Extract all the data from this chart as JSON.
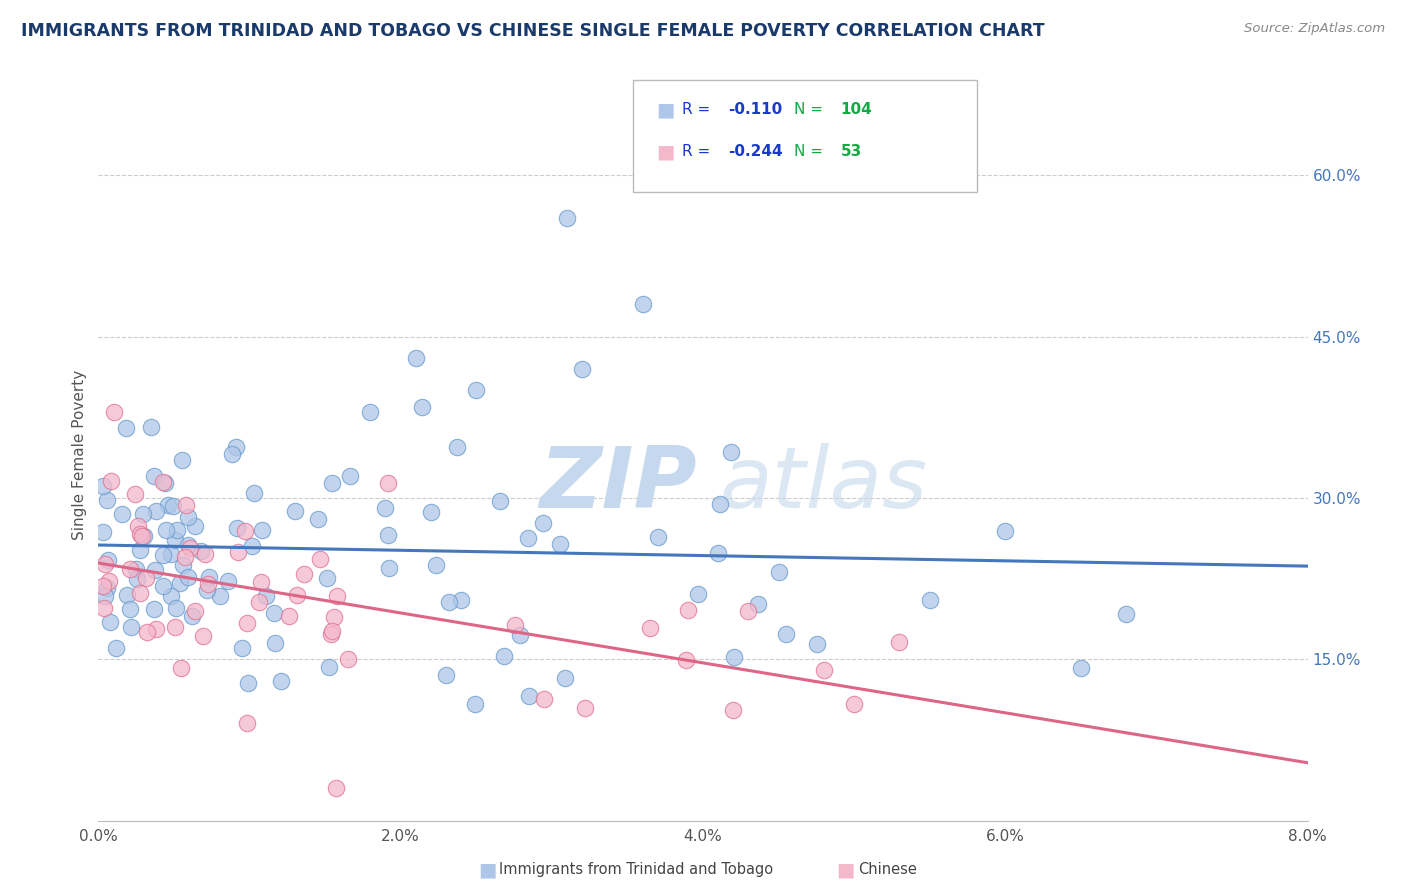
{
  "title": "IMMIGRANTS FROM TRINIDAD AND TOBAGO VS CHINESE SINGLE FEMALE POVERTY CORRELATION CHART",
  "source_text": "Source: ZipAtlas.com",
  "ylabel": "Single Female Poverty",
  "xlim": [
    0.0,
    0.08
  ],
  "ylim": [
    0.0,
    0.68
  ],
  "xtick_vals": [
    0.0,
    0.02,
    0.04,
    0.06,
    0.08
  ],
  "xtick_labels": [
    "0.0%",
    "2.0%",
    "4.0%",
    "6.0%",
    "8.0%"
  ],
  "right_ytick_vals": [
    0.15,
    0.3,
    0.45,
    0.6
  ],
  "right_ytick_labels": [
    "15.0%",
    "30.0%",
    "45.0%",
    "60.0%"
  ],
  "r_blue": -0.11,
  "n_blue": 104,
  "r_pink": -0.244,
  "n_pink": 53,
  "blue_fill": "#aec6e8",
  "blue_edge": "#6699cc",
  "pink_fill": "#f4b8cb",
  "pink_edge": "#e07090",
  "line_blue": "#4477bb",
  "line_pink": "#dd6688",
  "title_color": "#1a3a6b",
  "source_color": "#888888",
  "legend_r_color": "#1a3acc",
  "legend_n_color": "#11aa44",
  "watermark_color": "#c5d8ee",
  "grid_color": "#cccccc"
}
